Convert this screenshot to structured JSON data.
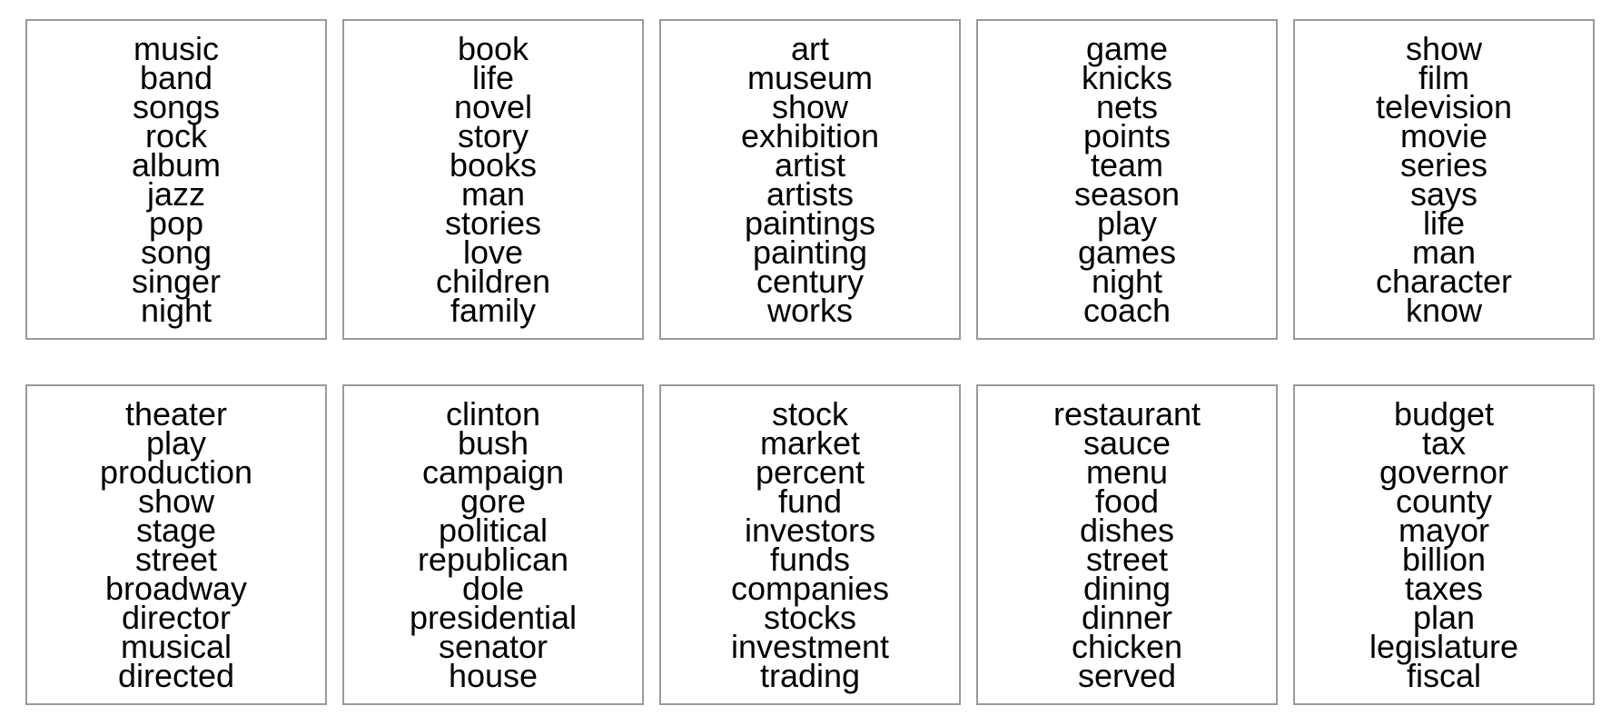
{
  "topics": [
    {
      "words": [
        "music",
        "band",
        "songs",
        "rock",
        "album",
        "jazz",
        "pop",
        "song",
        "singer",
        "night"
      ]
    },
    {
      "words": [
        "book",
        "life",
        "novel",
        "story",
        "books",
        "man",
        "stories",
        "love",
        "children",
        "family"
      ]
    },
    {
      "words": [
        "art",
        "museum",
        "show",
        "exhibition",
        "artist",
        "artists",
        "paintings",
        "painting",
        "century",
        "works"
      ]
    },
    {
      "words": [
        "game",
        "knicks",
        "nets",
        "points",
        "team",
        "season",
        "play",
        "games",
        "night",
        "coach"
      ]
    },
    {
      "words": [
        "show",
        "film",
        "television",
        "movie",
        "series",
        "says",
        "life",
        "man",
        "character",
        "know"
      ]
    },
    {
      "words": [
        "theater",
        "play",
        "production",
        "show",
        "stage",
        "street",
        "broadway",
        "director",
        "musical",
        "directed"
      ]
    },
    {
      "words": [
        "clinton",
        "bush",
        "campaign",
        "gore",
        "political",
        "republican",
        "dole",
        "presidential",
        "senator",
        "house"
      ]
    },
    {
      "words": [
        "stock",
        "market",
        "percent",
        "fund",
        "investors",
        "funds",
        "companies",
        "stocks",
        "investment",
        "trading"
      ]
    },
    {
      "words": [
        "restaurant",
        "sauce",
        "menu",
        "food",
        "dishes",
        "street",
        "dining",
        "dinner",
        "chicken",
        "served"
      ]
    },
    {
      "words": [
        "budget",
        "tax",
        "governor",
        "county",
        "mayor",
        "billion",
        "taxes",
        "plan",
        "legislature",
        "fiscal"
      ]
    }
  ]
}
